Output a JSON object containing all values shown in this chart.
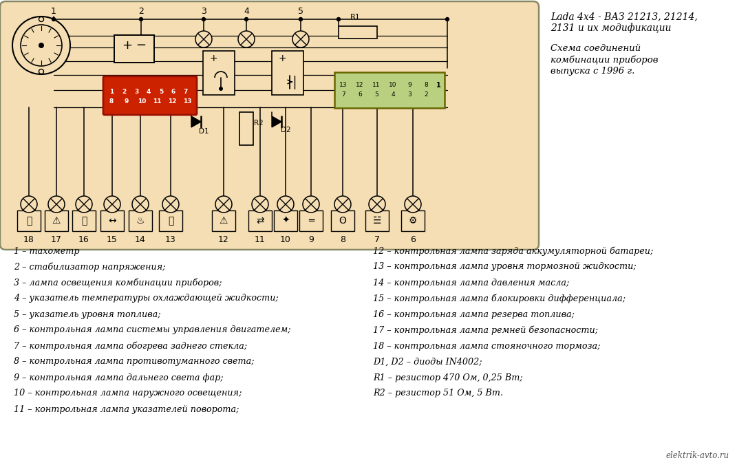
{
  "bg_color": "#ffffff",
  "diagram_bg": "#f5deb3",
  "diagram_border": "#888877",
  "title_line1": "Lada 4x4 - ВАЗ 21213, 21214,",
  "title_line2": "2131 и их модификации",
  "subtitle_line1": "Схема соединений",
  "subtitle_line2": "комбинации приборов",
  "subtitle_line3": "выпуска с 1996 г.",
  "watermark": "elektrik-avto.ru",
  "connector_red_color": "#cc2200",
  "connector_green_color": "#b8d080",
  "connector_green_border": "#666600",
  "left_labels": [
    "1 – тахометр",
    "2 – стабилизатор напряжения;",
    "3 – лампа освещения комбинации приборов;",
    "4 – указатель температуры охлаждающей жидкости;",
    "5 – указатель уровня топлива;",
    "6 – контрольная лампа системы управления двигателем;",
    "7 – контрольная лампа обогрева заднего стекла;",
    "8 – контрольная лампа противотуманного света;",
    "9 – контрольная лампа дальнего света фар;",
    "10 – контрольная лампа наружного освещения;",
    "11 – контрольная лампа указателей поворота;"
  ],
  "right_labels": [
    "12 – контрольная лампа заряда аккумуляторной батареи;",
    "13 – контрольная лампа уровня тормозной жидкости;",
    "14 – контрольная лампа давления масла;",
    "15 – контрольная лампа блокировки дифференциала;",
    "16 – контрольная лампа резерва топлива;",
    "17 – контрольная лампа ремней безопасности;",
    "18 – контрольная лампа стояночного тормоза;",
    "D1, D2 – диоды IN4002;",
    "R1 – резистор 470 Ом, 0,25 Вт;",
    "R2 – резистор 51 Ом, 5 Вт."
  ]
}
